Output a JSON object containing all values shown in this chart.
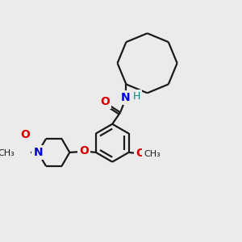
{
  "bg_color": "#ebebeb",
  "bond_color": "#1a1a1a",
  "bond_width": 1.6,
  "N_color": "#0000e0",
  "O_color": "#dd0000",
  "H_color": "#008080",
  "figsize": [
    3.0,
    3.0
  ],
  "dpi": 100,
  "xlim": [
    0,
    10
  ],
  "ylim": [
    0,
    10
  ]
}
